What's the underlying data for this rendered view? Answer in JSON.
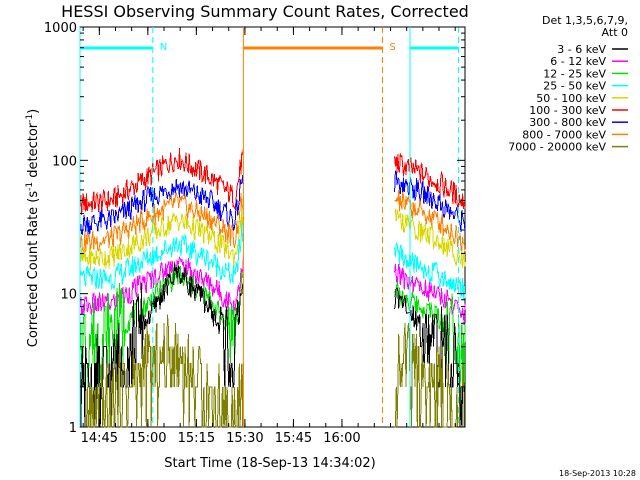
{
  "chart_data": {
    "type": "line",
    "title": "HESSI Observing Summary Count Rates, Corrected",
    "xlabel": "Start Time (18-Sep-13 14:34:02)",
    "ylabel_main": "Corrected Count Rate (s",
    "ylabel_sup1": "-1",
    "ylabel_mid": " detector",
    "ylabel_sup2": "-1",
    "ylabel_end": ")",
    "yscale": "log",
    "ylim": [
      1,
      1000
    ],
    "xlim_min": [
      5.0,
      124.0
    ],
    "xticks": [
      {
        "label": "14:45",
        "min": 10.97
      },
      {
        "label": "15:00",
        "min": 25.97
      },
      {
        "label": "15:15",
        "min": 40.97
      },
      {
        "label": "15:30",
        "min": 55.97
      },
      {
        "label": "15:45",
        "min": 70.97
      },
      {
        "label": "16:00",
        "min": 85.97
      }
    ],
    "yticks": [
      {
        "label": "1",
        "value": 1
      },
      {
        "label": "10",
        "value": 10
      },
      {
        "label": "100",
        "value": 100
      },
      {
        "label": "1000",
        "value": 1000
      }
    ],
    "legend": {
      "placement": "right",
      "header": [
        "Det 1,3,5,6,7,9,",
        "Att 0"
      ],
      "entries": [
        {
          "label": "3 - 6 keV",
          "color": "#000000"
        },
        {
          "label": "6 - 12 keV",
          "color": "#ff00ff"
        },
        {
          "label": "12 - 25 keV",
          "color": "#00e000"
        },
        {
          "label": "25 - 50 keV",
          "color": "#00ffff"
        },
        {
          "label": "50 - 100 keV",
          "color": "#d8d800"
        },
        {
          "label": "100 - 300 keV",
          "color": "#ff0000"
        },
        {
          "label": "300 - 800 keV",
          "color": "#0000ff"
        },
        {
          "label": "800 - 7000 keV",
          "color": "#ff8000"
        },
        {
          "label": "7000 - 20000 keV",
          "color": "#808000"
        }
      ]
    },
    "gaps_min": [
      [
        55.5,
        102.2
      ]
    ],
    "orbit_markers": [
      {
        "label": "N",
        "color": "#00ffff",
        "start_min": 5.0,
        "end_min": 27.5,
        "dashed_min": 27.5
      },
      {
        "label": "S",
        "color": "#ff8000",
        "start_min": 55.5,
        "end_min": 98.5,
        "dashed_min": 98.5
      },
      {
        "label": "",
        "color": "#00ffff",
        "start_min": 107.0,
        "end_min": 122.0,
        "dashed_min": 122.0
      }
    ],
    "series": [
      {
        "name": "100 - 300 keV",
        "color": "#ff0000",
        "x": [
          5,
          15,
          25,
          35,
          45,
          53,
          55,
          103,
          108,
          115,
          120,
          123
        ],
        "y": [
          47,
          50,
          72,
          105,
          75,
          52,
          100,
          95,
          85,
          70,
          58,
          50
        ]
      },
      {
        "name": "300 - 800 keV",
        "color": "#0000ff",
        "x": [
          5,
          15,
          25,
          35,
          45,
          53,
          55,
          103,
          108,
          115,
          120,
          123
        ],
        "y": [
          33,
          36,
          50,
          65,
          50,
          35,
          70,
          70,
          62,
          50,
          40,
          35
        ]
      },
      {
        "name": "800 - 7000 keV",
        "color": "#ff8000",
        "x": [
          5,
          15,
          25,
          35,
          45,
          53,
          55,
          103,
          108,
          115,
          120,
          123
        ],
        "y": [
          24,
          26,
          36,
          48,
          37,
          26,
          50,
          50,
          44,
          36,
          29,
          25
        ]
      },
      {
        "name": "50 - 100 keV",
        "color": "#d8d800",
        "x": [
          5,
          15,
          25,
          35,
          45,
          53,
          55,
          103,
          108,
          115,
          120,
          123
        ],
        "y": [
          18,
          19,
          26,
          36,
          27,
          19,
          38,
          36,
          31,
          26,
          21,
          18
        ]
      },
      {
        "name": "25 - 50 keV",
        "color": "#00ffff",
        "x": [
          5,
          15,
          25,
          35,
          45,
          53,
          55,
          103,
          108,
          115,
          120,
          123
        ],
        "y": [
          13,
          13,
          18,
          24,
          18,
          13,
          28,
          20,
          17,
          14,
          12,
          11
        ]
      },
      {
        "name": "6 - 12 keV",
        "color": "#ff00ff",
        "x": [
          5,
          15,
          25,
          35,
          45,
          53,
          55,
          103,
          108,
          115,
          120,
          123
        ],
        "y": [
          8,
          8.5,
          12,
          17,
          12,
          8,
          16,
          14,
          12,
          10,
          8.5,
          7
        ]
      },
      {
        "name": "12 - 25 keV",
        "color": "#00e000",
        "x": [
          5,
          15,
          25,
          35,
          45,
          53,
          55,
          103,
          108,
          115,
          120,
          123
        ],
        "y": [
          4.5,
          5,
          8,
          14,
          9,
          5,
          12,
          10,
          8.5,
          7,
          5.5,
          4.5
        ]
      },
      {
        "name": "3 - 6 keV",
        "color": "#000000",
        "x": [
          5,
          15,
          25,
          35,
          45,
          53,
          55,
          103,
          108,
          115,
          120,
          123
        ],
        "y": [
          1.8,
          2.5,
          6,
          15,
          8,
          3,
          12,
          9,
          7,
          4,
          3,
          2.4
        ]
      },
      {
        "name": "7000 - 20000 keV",
        "color": "#808000",
        "x": [
          5,
          15,
          25,
          35,
          45,
          53,
          55,
          103,
          108,
          115,
          120,
          123
        ],
        "y": [
          1.0,
          1.4,
          2.6,
          3.4,
          1.6,
          1.0,
          1.5,
          3.0,
          2.6,
          2.0,
          1.5,
          1.2
        ]
      }
    ],
    "timestamp": "18-Sep-2013 10:28"
  }
}
